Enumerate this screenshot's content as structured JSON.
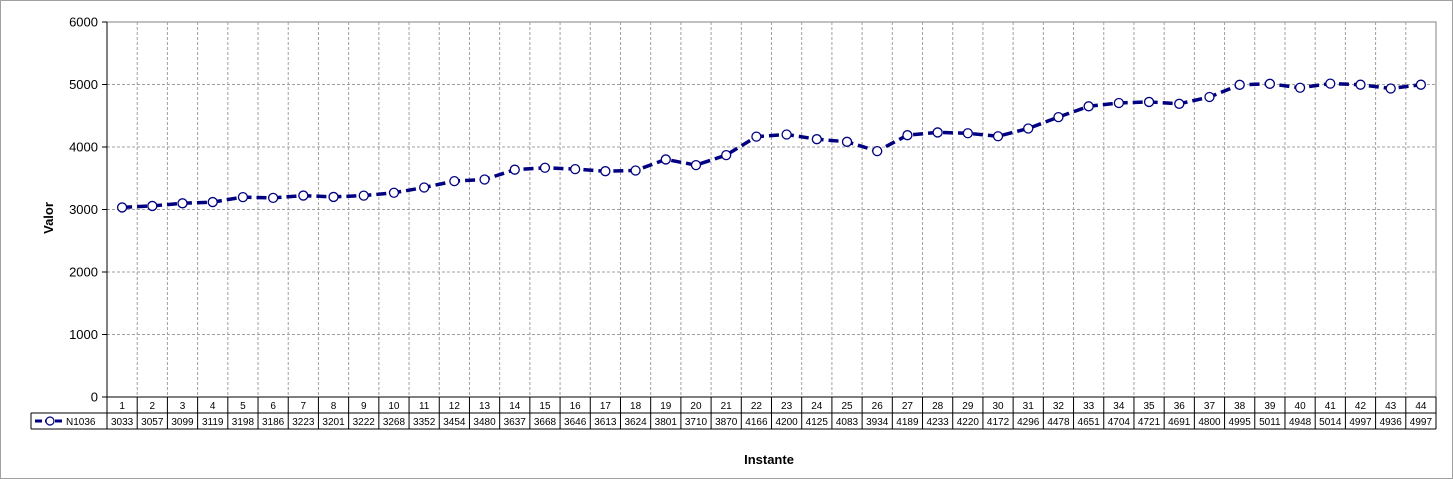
{
  "chart_data": {
    "type": "line",
    "xlabel": "Instante",
    "ylabel": "Valor",
    "ylim": [
      0,
      6000
    ],
    "yticks": [
      0,
      1000,
      2000,
      3000,
      4000,
      5000,
      6000
    ],
    "grid": true,
    "legend": "data-table-left",
    "categories": [
      "1",
      "2",
      "3",
      "4",
      "5",
      "6",
      "7",
      "8",
      "9",
      "10",
      "11",
      "12",
      "13",
      "14",
      "15",
      "16",
      "17",
      "18",
      "19",
      "20",
      "21",
      "22",
      "23",
      "24",
      "25",
      "26",
      "27",
      "28",
      "29",
      "30",
      "31",
      "32",
      "33",
      "34",
      "35",
      "36",
      "37",
      "38",
      "39",
      "40",
      "41",
      "42",
      "43",
      "44"
    ],
    "series": [
      {
        "name": "N1036",
        "color": "#000080",
        "values": [
          3033,
          3057,
          3099,
          3119,
          3198,
          3186,
          3223,
          3201,
          3222,
          3268,
          3352,
          3454,
          3480,
          3637,
          3668,
          3646,
          3613,
          3624,
          3801,
          3710,
          3870,
          4166,
          4200,
          4125,
          4083,
          3934,
          4189,
          4233,
          4220,
          4172,
          4296,
          4478,
          4651,
          4704,
          4721,
          4691,
          4800,
          4995,
          5011,
          4948,
          5014,
          4997,
          4936,
          4997
        ]
      }
    ]
  }
}
